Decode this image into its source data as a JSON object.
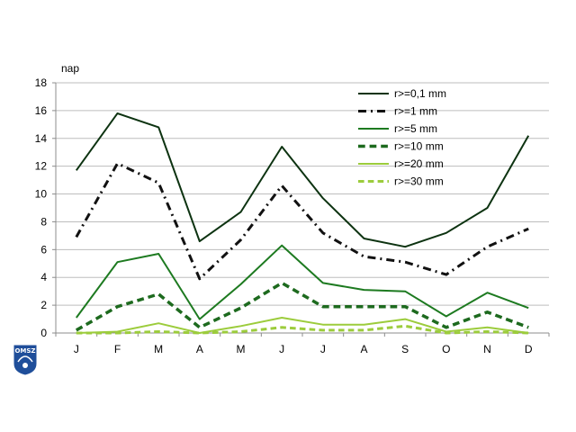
{
  "chart_data": {
    "type": "line",
    "ylabel": "nap",
    "ylim": [
      0,
      18
    ],
    "yticks": [
      "0",
      "2",
      "4",
      "6",
      "8",
      "10",
      "12",
      "14",
      "16",
      "18"
    ],
    "categories": [
      "J",
      "F",
      "M",
      "A",
      "M",
      "J",
      "J",
      "A",
      "S",
      "O",
      "N",
      "D"
    ],
    "grid": true,
    "legend_position": "top-right",
    "series": [
      {
        "name": "r>=0,1 mm",
        "color": "#0d3311",
        "dash": "solid",
        "width": 2,
        "values": [
          11.7,
          15.8,
          14.8,
          6.6,
          8.7,
          13.4,
          9.7,
          6.8,
          6.2,
          7.2,
          9.0,
          14.2
        ]
      },
      {
        "name": "r>=1 mm",
        "color": "#111111",
        "dash": "dashdot",
        "width": 3,
        "values": [
          6.9,
          12.2,
          10.8,
          3.9,
          6.7,
          10.6,
          7.2,
          5.5,
          5.1,
          4.2,
          6.2,
          7.5
        ]
      },
      {
        "name": "r>=5 mm",
        "color": "#1d7a20",
        "dash": "solid",
        "width": 2,
        "values": [
          1.1,
          5.1,
          5.7,
          1.0,
          3.5,
          6.3,
          3.6,
          3.1,
          3.0,
          1.2,
          2.9,
          1.8
        ]
      },
      {
        "name": "r>=10 mm",
        "color": "#1d6a1e",
        "dash": "dashed",
        "width": 3.5,
        "values": [
          0.2,
          1.9,
          2.8,
          0.4,
          1.8,
          3.6,
          1.9,
          1.9,
          1.9,
          0.4,
          1.5,
          0.4
        ]
      },
      {
        "name": "r>=20 mm",
        "color": "#9ccc3c",
        "dash": "solid",
        "width": 2,
        "values": [
          0.0,
          0.1,
          0.7,
          0.0,
          0.5,
          1.1,
          0.6,
          0.6,
          1.0,
          0.1,
          0.4,
          0.0
        ]
      },
      {
        "name": "r>=30 mm",
        "color": "#9ccc3c",
        "dash": "dashed",
        "width": 3,
        "values": [
          0.0,
          0.0,
          0.1,
          0.0,
          0.1,
          0.4,
          0.2,
          0.2,
          0.5,
          0.0,
          0.1,
          0.0
        ]
      }
    ]
  },
  "logo": {
    "text": "OMSZ",
    "color": "#1f4e9a"
  }
}
